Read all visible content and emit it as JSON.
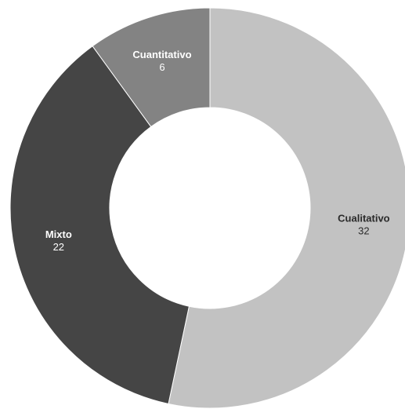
{
  "chart_data": {
    "type": "pie",
    "variant": "donut",
    "title": "",
    "slices": [
      {
        "label": "Cualitativo",
        "value": 32,
        "color": "#c2c2c2",
        "label_color": "#2a2a2a"
      },
      {
        "label": "Mixto",
        "value": 22,
        "color": "#454545",
        "label_color": "#ffffff"
      },
      {
        "label": "Cuantitativo",
        "value": 6,
        "color": "#838383",
        "label_color": "#ffffff"
      }
    ],
    "start_angle": "12 o'clock",
    "direction": "clockwise",
    "legend": "none",
    "data_labels": "inside slices (name and value)"
  }
}
